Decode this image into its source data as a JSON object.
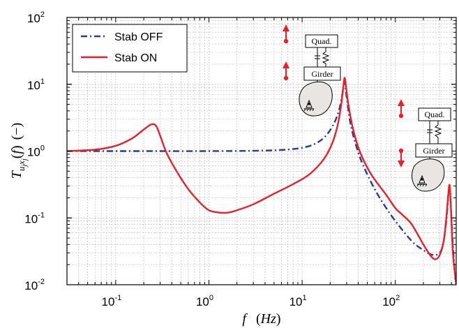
{
  "chart_data": {
    "type": "line",
    "xscale": "log",
    "yscale": "log",
    "xlim": [
      0.03,
      450
    ],
    "ylim": [
      0.01,
      100
    ],
    "grid": true,
    "legend_position": "top-left",
    "xlabel": "f  (Hz)",
    "ylabel": "T u_j x_j (f)  (−)",
    "x_ticks": [
      {
        "value": 0.1,
        "base": "10",
        "exp": "-1"
      },
      {
        "value": 1,
        "base": "10",
        "exp": "0"
      },
      {
        "value": 10,
        "base": "10",
        "exp": "1"
      },
      {
        "value": 100,
        "base": "10",
        "exp": "2"
      }
    ],
    "y_ticks": [
      {
        "value": 0.01,
        "base": "10",
        "exp": "-2"
      },
      {
        "value": 0.1,
        "base": "10",
        "exp": "-1"
      },
      {
        "value": 1,
        "base": "10",
        "exp": "0"
      },
      {
        "value": 10,
        "base": "10",
        "exp": "1"
      },
      {
        "value": 100,
        "base": "10",
        "exp": "2"
      }
    ],
    "series": [
      {
        "name": "Stab OFF",
        "color": "#2b3a9a",
        "style": "dash-dot",
        "x": [
          0.03,
          0.1,
          0.3,
          1,
          3,
          6,
          10,
          14,
          18,
          22,
          25,
          27,
          28.5,
          30,
          33,
          38,
          45,
          60,
          80,
          100,
          150,
          200,
          250,
          300,
          330,
          355,
          370,
          380,
          390,
          410,
          440
        ],
        "y": [
          1.0,
          1.0,
          1.0,
          1.0,
          1.01,
          1.04,
          1.12,
          1.3,
          1.7,
          2.6,
          4.2,
          7.0,
          11.0,
          6.5,
          2.6,
          1.2,
          0.62,
          0.27,
          0.14,
          0.09,
          0.045,
          0.033,
          0.028,
          0.03,
          0.045,
          0.1,
          0.22,
          0.3,
          0.2,
          0.05,
          0.012
        ]
      },
      {
        "name": "Stab ON",
        "color": "#e8202a",
        "style": "solid",
        "x": [
          0.03,
          0.06,
          0.1,
          0.15,
          0.2,
          0.24,
          0.27,
          0.3,
          0.35,
          0.45,
          0.6,
          0.8,
          1.0,
          1.3,
          1.6,
          2.0,
          3,
          5,
          8,
          12,
          17,
          21,
          24,
          26,
          27.5,
          28.5,
          29.5,
          31,
          35,
          42,
          55,
          80,
          100,
          120,
          150,
          200,
          240,
          270,
          300,
          330,
          350,
          365,
          378,
          385,
          395,
          415,
          450
        ],
        "y": [
          1.0,
          1.05,
          1.2,
          1.55,
          2.1,
          2.5,
          2.4,
          1.7,
          0.95,
          0.5,
          0.27,
          0.17,
          0.13,
          0.12,
          0.12,
          0.13,
          0.16,
          0.23,
          0.32,
          0.45,
          0.75,
          1.3,
          2.4,
          4.5,
          8.5,
          12.5,
          9.5,
          5.5,
          2.2,
          0.95,
          0.45,
          0.22,
          0.14,
          0.11,
          0.08,
          0.04,
          0.027,
          0.024,
          0.028,
          0.045,
          0.09,
          0.18,
          0.3,
          0.28,
          0.14,
          0.03,
          0.01
        ]
      }
    ]
  },
  "annotations": {
    "top": {
      "quad_label": "Quad.",
      "girder_label": "Girder"
    },
    "right": {
      "quad_label": "Quad.",
      "girder_label": "Girder"
    }
  },
  "colors": {
    "grid": "#b0b0b0",
    "arrow": "#e8202a",
    "blob_fill": "#e8e5e3"
  }
}
